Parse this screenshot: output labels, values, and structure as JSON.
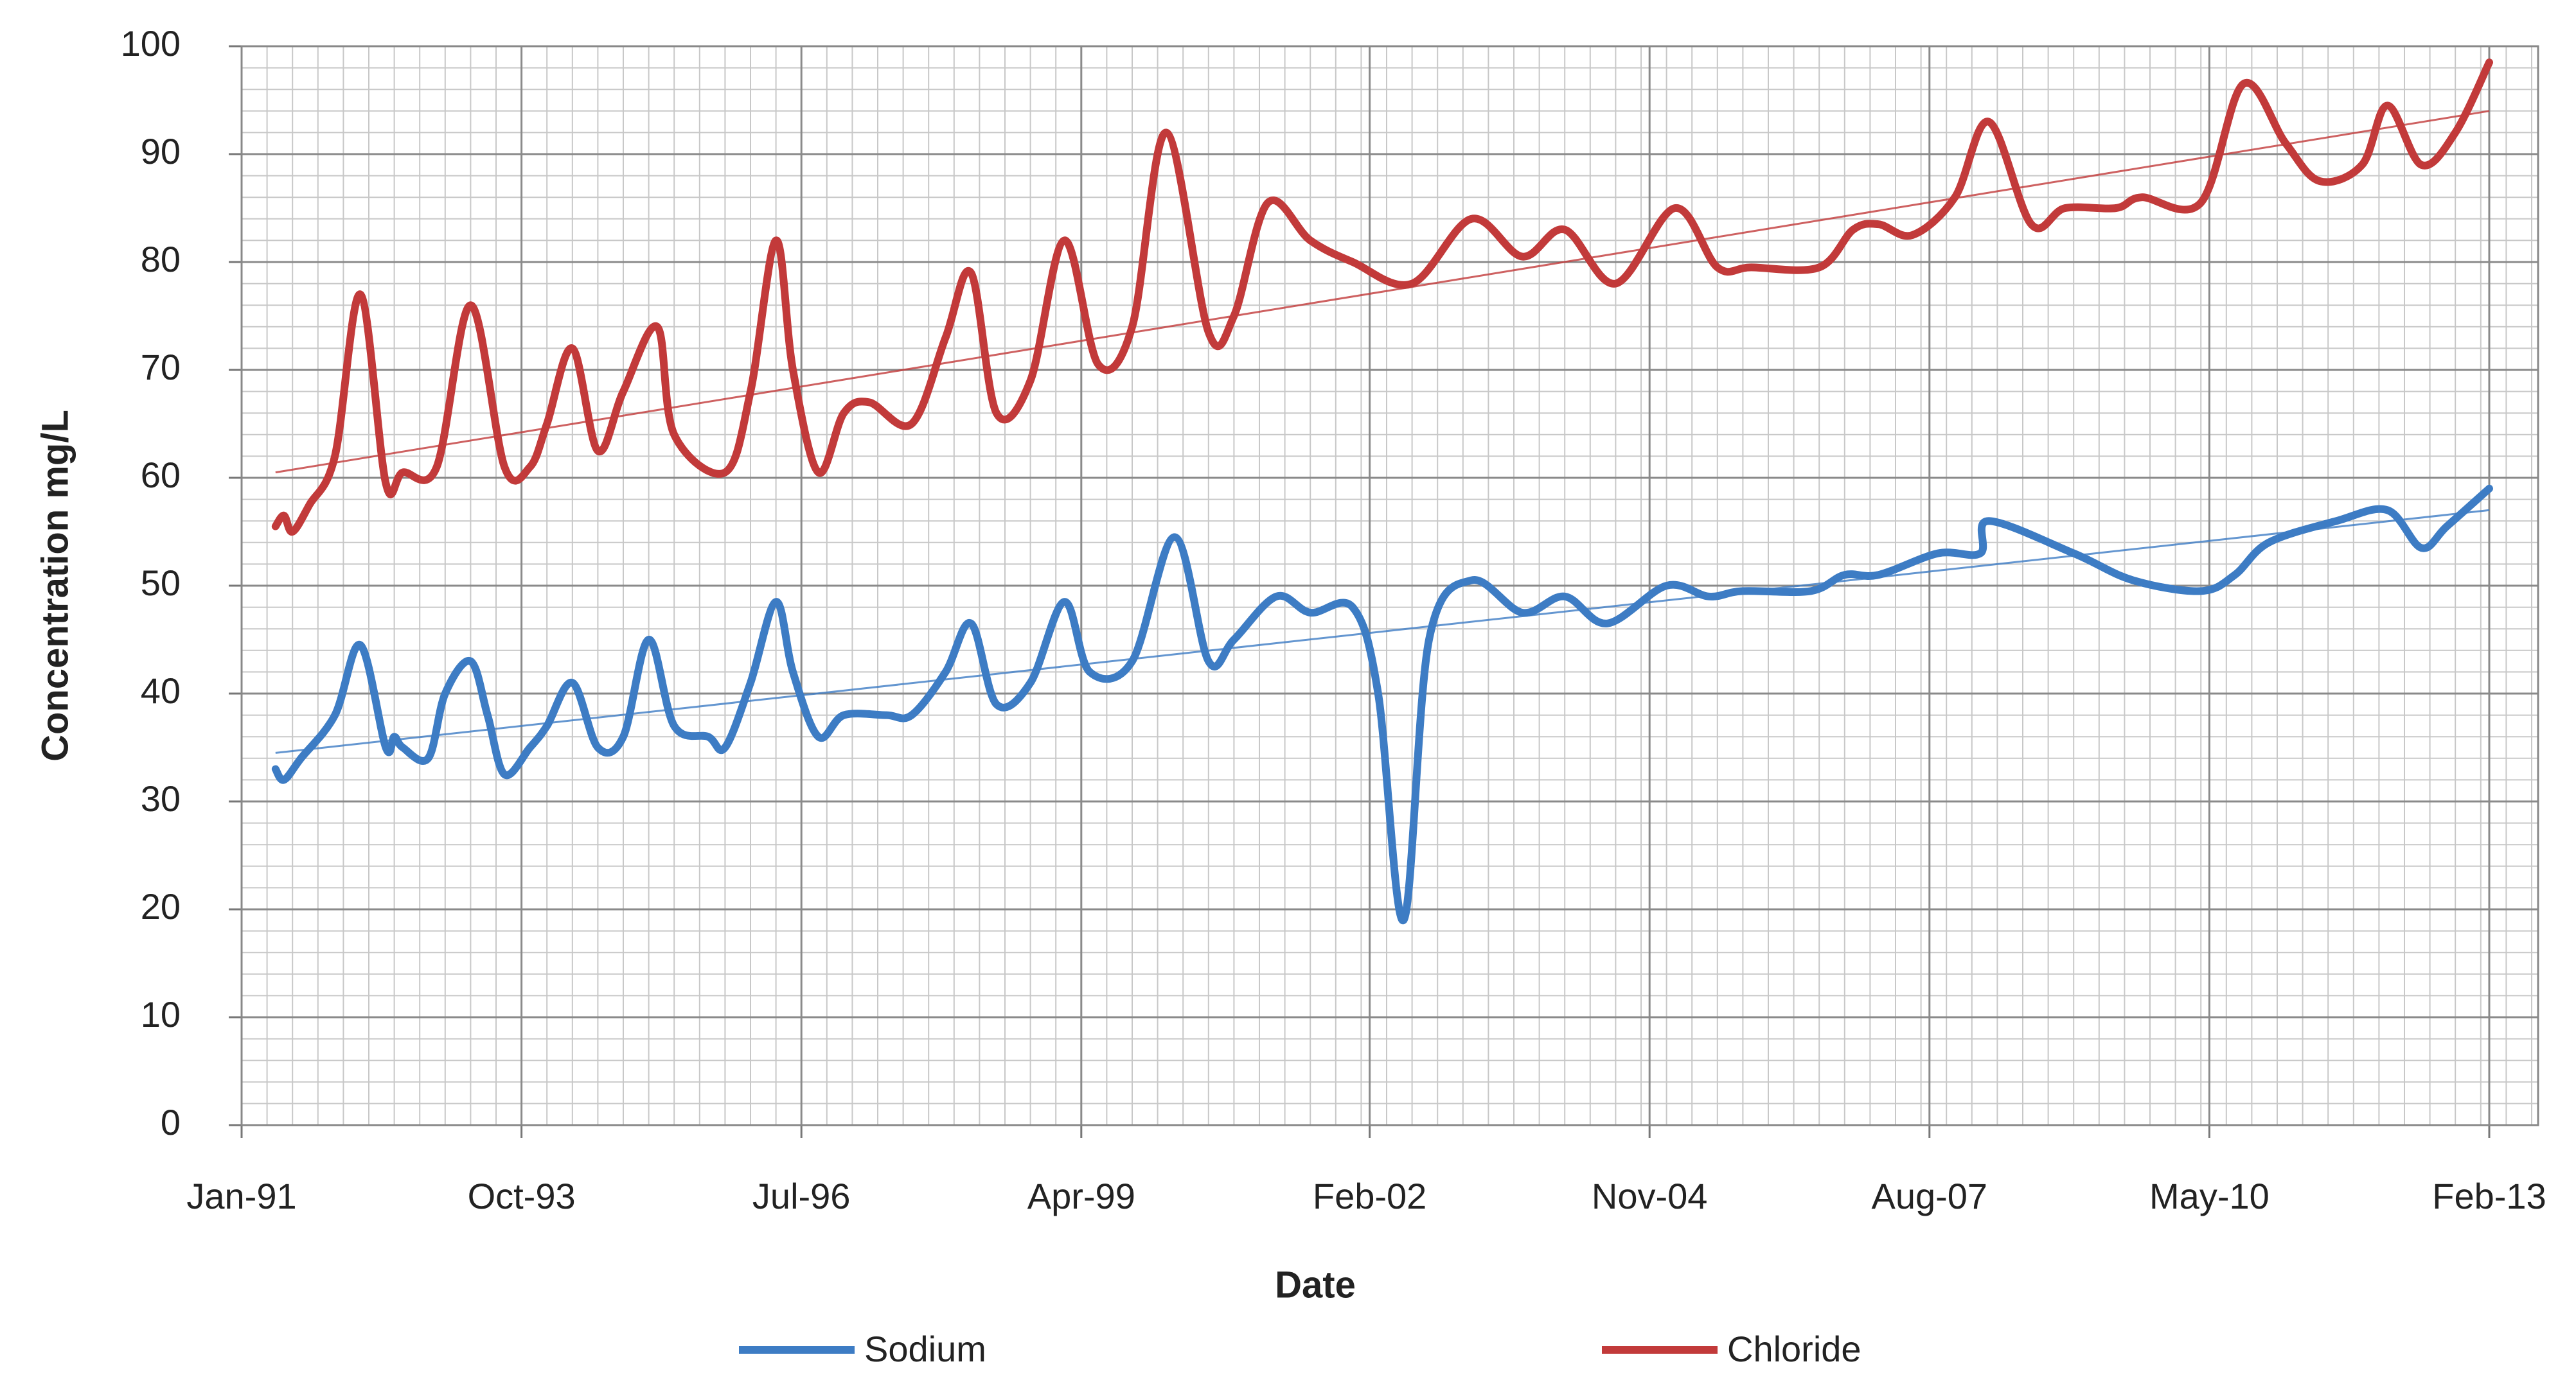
{
  "chart_data": {
    "type": "line",
    "x_label": "Date",
    "y_label": "Concentration mg/L",
    "xlim": [
      "1991-01",
      "2013-02"
    ],
    "xticks": [
      {
        "value": "1991-01",
        "label": "Jan-91"
      },
      {
        "value": "1993-10",
        "label": "Oct-93"
      },
      {
        "value": "1996-07",
        "label": "Jul-96"
      },
      {
        "value": "1999-04",
        "label": "Apr-99"
      },
      {
        "value": "2002-02",
        "label": "Feb-02"
      },
      {
        "value": "2004-11",
        "label": "Nov-04"
      },
      {
        "value": "2007-08",
        "label": "Aug-07"
      },
      {
        "value": "2010-05",
        "label": "May-10"
      },
      {
        "value": "2013-02",
        "label": "Feb-13"
      }
    ],
    "ylim": [
      0,
      100
    ],
    "yticks": [
      0,
      10,
      20,
      30,
      40,
      50,
      60,
      70,
      80,
      90,
      100
    ],
    "grid": true,
    "minor_grid": {
      "x_months": 3,
      "y": 2
    },
    "legend": "bottom",
    "series": [
      {
        "name": "Sodium",
        "color": "#3d7cc4",
        "x": [
          "1991-05",
          "1991-06",
          "1991-08",
          "1991-12",
          "1992-03",
          "1992-06",
          "1992-07",
          "1992-08",
          "1992-11",
          "1993-01",
          "1993-04",
          "1993-06",
          "1993-08",
          "1993-11",
          "1994-01",
          "1994-04",
          "1994-07",
          "1994-10",
          "1995-01",
          "1995-04",
          "1995-08",
          "1995-10",
          "1996-01",
          "1996-04",
          "1996-06",
          "1996-09",
          "1996-12",
          "1997-05",
          "1997-08",
          "1997-12",
          "1998-03",
          "1998-06",
          "1998-10",
          "1999-02",
          "1999-05",
          "1999-10",
          "2000-03",
          "2000-07",
          "2000-10",
          "2001-03",
          "2001-07",
          "2001-12",
          "2002-03",
          "2002-06",
          "2002-09",
          "2003-02",
          "2003-08",
          "2004-01",
          "2004-06",
          "2005-01",
          "2005-06",
          "2005-10",
          "2006-06",
          "2006-10",
          "2007-02",
          "2007-09",
          "2008-02",
          "2008-03",
          "2009-01",
          "2009-08",
          "2010-04",
          "2010-08",
          "2010-12",
          "2011-08",
          "2012-02",
          "2012-06",
          "2012-09",
          "2013-02"
        ],
        "values": [
          33,
          32,
          34,
          38,
          44.5,
          35,
          36,
          35,
          34,
          40,
          43,
          38,
          32.5,
          35,
          37,
          41,
          35,
          36,
          45,
          37,
          36,
          35,
          41,
          48.5,
          42,
          36,
          38,
          38,
          38,
          42,
          46.5,
          39,
          41,
          48.5,
          42,
          43,
          54.5,
          43,
          45,
          49,
          47.5,
          48,
          40,
          19,
          45,
          50.5,
          47.5,
          49,
          46.5,
          50,
          49,
          49.5,
          49.5,
          51,
          51,
          53,
          53,
          56,
          53,
          50.5,
          49.5,
          51,
          54,
          56,
          57,
          53.5,
          55.5,
          59
        ],
        "trend": {
          "x": [
            "1991-05",
            "2013-02"
          ],
          "values": [
            34.5,
            57
          ]
        }
      },
      {
        "name": "Chloride",
        "color": "#c23a3a",
        "x": [
          "1991-05",
          "1991-06",
          "1991-07",
          "1991-09",
          "1991-12",
          "1992-03",
          "1992-06",
          "1992-08",
          "1992-12",
          "1993-04",
          "1993-08",
          "1993-11",
          "1994-01",
          "1994-04",
          "1994-07",
          "1994-10",
          "1995-02",
          "1995-04",
          "1995-10",
          "1996-01",
          "1996-04",
          "1996-06",
          "1996-09",
          "1996-12",
          "1997-03",
          "1997-08",
          "1997-12",
          "1998-03",
          "1998-06",
          "1998-10",
          "1999-02",
          "1999-06",
          "1999-10",
          "2000-02",
          "2000-07",
          "2000-10",
          "2001-02",
          "2001-07",
          "2001-12",
          "2002-07",
          "2003-02",
          "2003-08",
          "2004-01",
          "2004-07",
          "2005-02",
          "2005-07",
          "2005-11",
          "2006-07",
          "2006-11",
          "2007-02",
          "2007-06",
          "2007-11",
          "2008-03",
          "2008-08",
          "2008-12",
          "2009-06",
          "2009-09",
          "2010-04",
          "2010-09",
          "2011-02",
          "2011-06",
          "2011-11",
          "2012-02",
          "2012-06",
          "2012-10",
          "2013-02"
        ],
        "values": [
          55.5,
          56.5,
          55,
          57.5,
          62,
          77,
          59.5,
          60.5,
          61,
          76,
          61,
          61,
          65,
          72,
          62.5,
          68,
          74,
          64,
          60.5,
          68,
          82,
          70,
          60.5,
          66,
          67,
          65,
          73,
          79,
          66,
          69,
          82,
          70.5,
          74,
          92,
          73.5,
          75,
          85.5,
          82,
          80,
          78,
          84,
          80.5,
          83,
          78,
          85,
          79.5,
          79.5,
          79.5,
          83,
          83.5,
          82.5,
          86,
          93,
          83.5,
          85,
          85,
          86,
          85.5,
          96.5,
          91,
          87.5,
          89,
          94.5,
          89,
          92,
          98.5
        ],
        "trend": {
          "x": [
            "1991-05",
            "2013-02"
          ],
          "values": [
            60.5,
            94
          ]
        }
      }
    ]
  }
}
